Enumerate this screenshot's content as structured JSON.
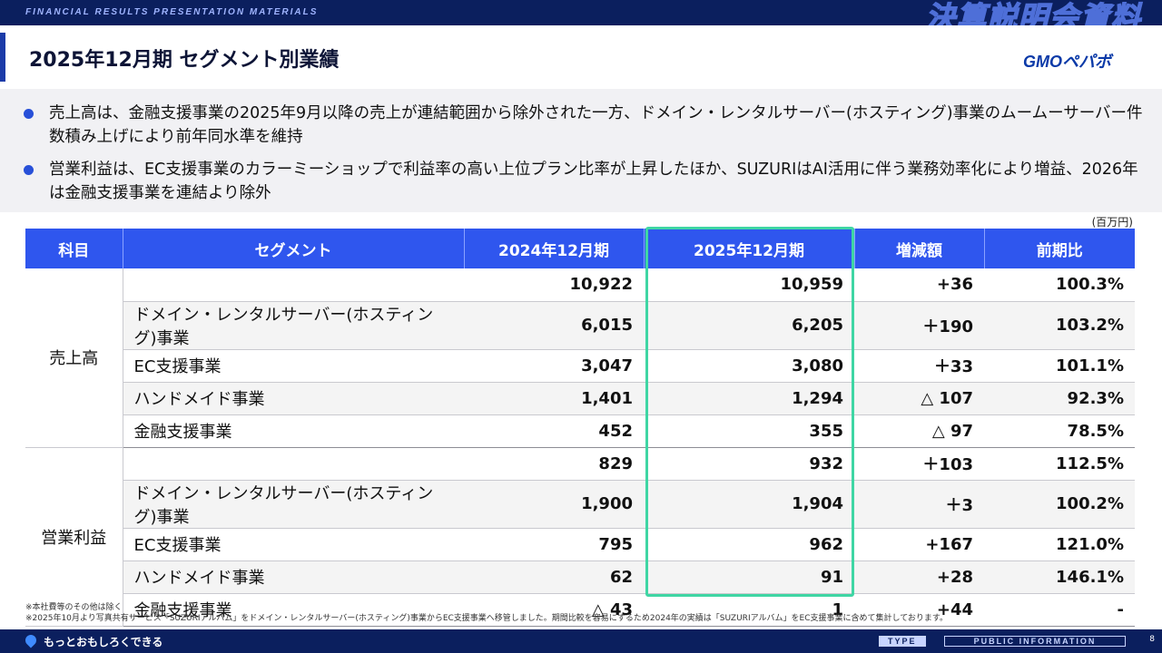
{
  "header": {
    "tagline": "FINANCIAL RESULTS PRESENTATION MATERIALS",
    "section_title": "決算説明会資料",
    "title": "2025年12月期 セグメント別業績",
    "logo": "GMOペパボ"
  },
  "summary": [
    "売上高は、金融支援事業の2025年9月以降の売上が連結範囲から除外された一方、ドメイン・レンタルサーバー(ホスティング)事業のムームーサーバー件数積み上げにより前年同水準を維持",
    "営業利益は、EC支援事業のカラーミーショップで利益率の高い上位プラン比率が上昇したほか、SUZURIはAI活用に伴う業務効率化により増益、2026年は金融支援事業を連結より除外"
  ],
  "unit": "(百万円)",
  "table": {
    "headers": [
      "科目",
      "セグメント",
      "2024年12月期",
      "2025年12月期",
      "増減額",
      "前期比"
    ],
    "groups": [
      {
        "category": "売上高",
        "rows": [
          {
            "segment": "",
            "fy2024": "10,922",
            "fy2025": "10,959",
            "change": "+36",
            "ratio": "100.3%"
          },
          {
            "segment": "ドメイン・レンタルサーバー(ホスティング)事業",
            "fy2024": "6,015",
            "fy2025": "6,205",
            "change": "＋190",
            "ratio": "103.2%"
          },
          {
            "segment": "EC支援事業",
            "fy2024": "3,047",
            "fy2025": "3,080",
            "change": "＋33",
            "ratio": "101.1%"
          },
          {
            "segment": "ハンドメイド事業",
            "fy2024": "1,401",
            "fy2025": "1,294",
            "change": "△ 107",
            "ratio": "92.3%"
          },
          {
            "segment": "金融支援事業",
            "fy2024": "452",
            "fy2025": "355",
            "change": "△ 97",
            "ratio": "78.5%"
          }
        ]
      },
      {
        "category": "営業利益",
        "rows": [
          {
            "segment": "",
            "fy2024": "829",
            "fy2025": "932",
            "change": "＋103",
            "ratio": "112.5%"
          },
          {
            "segment": "ドメイン・レンタルサーバー(ホスティング)事業",
            "fy2024": "1,900",
            "fy2025": "1,904",
            "change": "＋3",
            "ratio": "100.2%"
          },
          {
            "segment": "EC支援事業",
            "fy2024": "795",
            "fy2025": "962",
            "change": "+167",
            "ratio": "121.0%"
          },
          {
            "segment": "ハンドメイド事業",
            "fy2024": "62",
            "fy2025": "91",
            "change": "+28",
            "ratio": "146.1%"
          },
          {
            "segment": "金融支援事業",
            "fy2024": "△ 43",
            "fy2025": "1",
            "change": "+44",
            "ratio": "-"
          }
        ]
      }
    ]
  },
  "notes": [
    "※本社費等のその他は除く",
    "※2025年10月より写真共有サービス「SUZURIアルバム」をドメイン・レンタルサーバー(ホスティング)事業からEC支援事業へ移管しました。期間比較を容易にするため2024年の実績は「SUZURIアルバム」をEC支援事業に含めて集計しております。"
  ],
  "footer": {
    "slogan": "もっとおもしろくできる",
    "type_label": "TYPE",
    "classification": "PUBLIC INFORMATION",
    "page_number": "8"
  },
  "colors": {
    "navy": "#0b1f5e",
    "header_blue": "#2f56ee",
    "highlight_green": "#3fd6a4",
    "bullet_blue": "#2850d8"
  }
}
